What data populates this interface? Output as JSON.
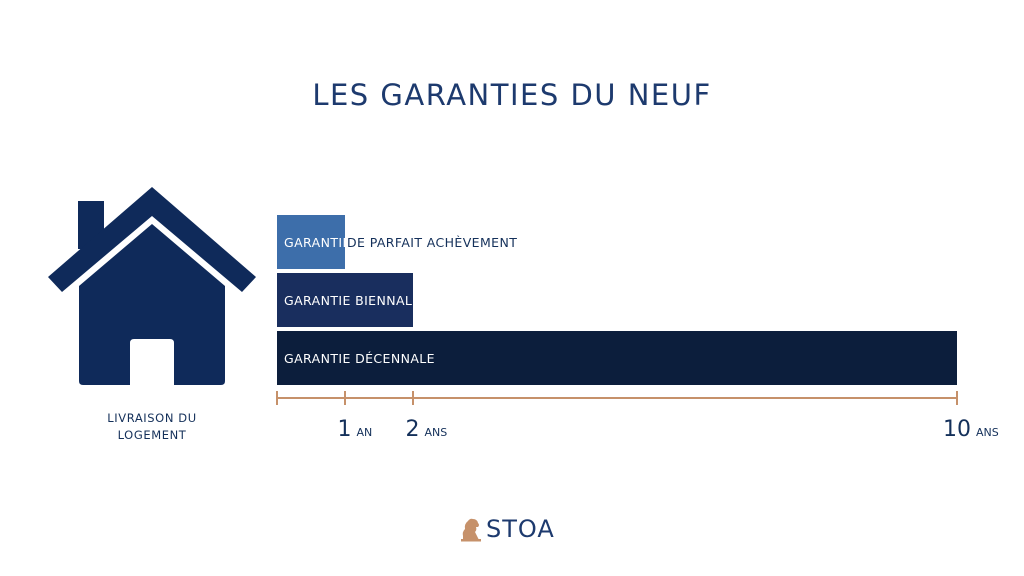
{
  "title": "LES GARANTIES DU NEUF",
  "house_label": [
    "LIVRAISON DU",
    "LOGEMENT"
  ],
  "brand": "STOA",
  "icons": {
    "house": "house-icon",
    "logo": "lion-logo-icon"
  },
  "colors": {
    "title": "#1d3a6e",
    "house": "#0f2a5a",
    "axis": "#c6916a",
    "bar_parfait": "#3d6eaa",
    "bar_biennale": "#192e5e",
    "bar_decennale": "#0c1e3c",
    "logo_lion": "#c6916a"
  },
  "chart_data": {
    "type": "bar",
    "orientation": "horizontal",
    "x_unit": "years",
    "xlim": [
      0,
      10
    ],
    "bars": [
      {
        "label_inside": "GARANTIE",
        "label_outside": "DE PARFAIT ACHÈVEMENT",
        "start": 0,
        "value": 1
      },
      {
        "label_inside": "GARANTIE BIENNALE",
        "label_outside": "",
        "start": 0,
        "value": 2
      },
      {
        "label_inside": "GARANTIE DÉCENNALE",
        "label_outside": "",
        "start": 0,
        "value": 10
      }
    ],
    "ticks": [
      {
        "value": 0,
        "number": "",
        "unit": ""
      },
      {
        "value": 1,
        "number": "1",
        "unit": "AN"
      },
      {
        "value": 2,
        "number": "2",
        "unit": "ANS"
      },
      {
        "value": 10,
        "number": "10",
        "unit": "ANS"
      }
    ]
  }
}
